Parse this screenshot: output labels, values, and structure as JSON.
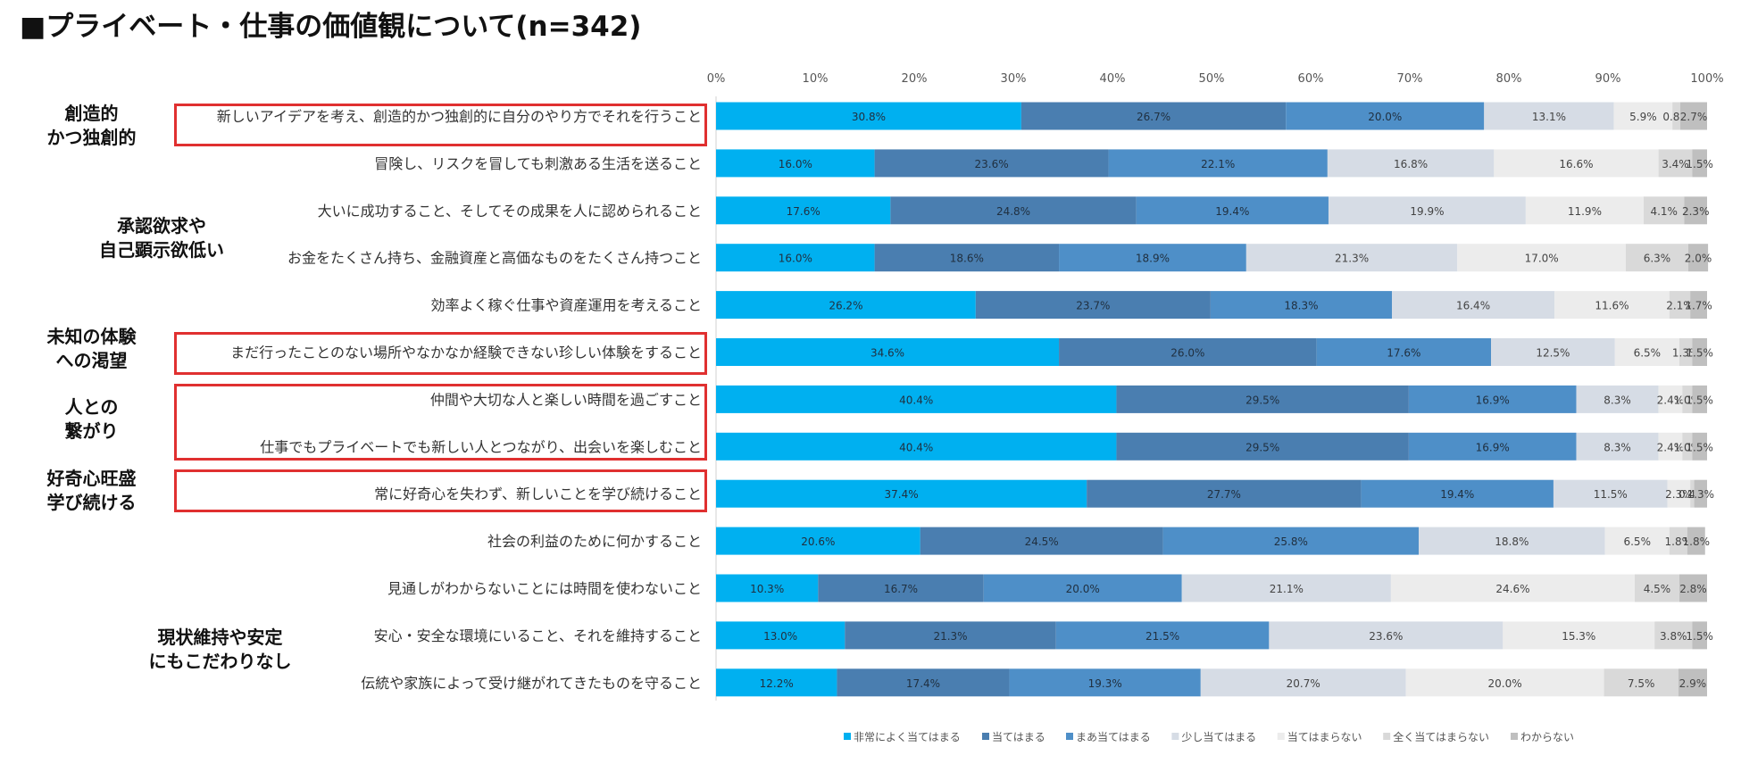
{
  "title": "■プライベート・仕事の価値観について(n=342)",
  "groups": [
    {
      "label": "創造的\nかつ独創的",
      "style": "green"
    },
    {
      "label": "承認欲求や\n自己顕示欲低い",
      "style": "gray"
    },
    {
      "label": "未知の体験\nへの渇望",
      "style": "green"
    },
    {
      "label": "人との\n繋がり",
      "style": "green"
    },
    {
      "label": "好奇心旺盛\n学び続ける",
      "style": "green"
    },
    {
      "label": "現状維持や安定\nにもこだわりなし",
      "style": "gray"
    }
  ],
  "chart_data": {
    "type": "bar",
    "orientation": "horizontal",
    "stacked": true,
    "percent": true,
    "xlim": [
      0,
      100
    ],
    "x_ticks": [
      "0%",
      "10%",
      "20%",
      "30%",
      "40%",
      "50%",
      "60%",
      "70%",
      "80%",
      "90%",
      "100%"
    ],
    "legend_position": "bottom",
    "categories": [
      "新しいアイデアを考え、創造的かつ独創的に自分のやり方でそれを行うこと",
      "冒険し、リスクを冒しても刺激ある生活を送ること",
      "大いに成功すること、そしてその成果を人に認められること",
      "お金をたくさん持ち、金融資産と高価なものをたくさん持つこと",
      "効率よく稼ぐ仕事や資産運用を考えること",
      "まだ行ったことのない場所やなかなか経験できない珍しい体験をすること",
      "仲間や大切な人と楽しい時間を過ごすこと",
      "仕事でもプライベートでも新しい人とつながり、出会いを楽しむこと",
      "常に好奇心を失わず、新しいことを学び続けること",
      "社会の利益のために何かすること",
      "見通しがわからないことには時間を使わないこと",
      "安心・安全な環境にいること、それを維持すること",
      "伝統や家族によって受け継がれてきたものを守ること"
    ],
    "series": [
      {
        "name": "非常によく当てはまる",
        "color": "#00b0f0",
        "values": [
          30.8,
          16.0,
          17.6,
          16.0,
          26.2,
          34.6,
          40.4,
          40.4,
          37.4,
          20.6,
          10.3,
          13.0,
          12.2
        ]
      },
      {
        "name": "当てはまる",
        "color": "#4a7eb0",
        "values": [
          26.7,
          23.6,
          24.8,
          18.6,
          23.7,
          26.0,
          29.5,
          29.5,
          27.7,
          24.5,
          16.7,
          21.3,
          17.4
        ]
      },
      {
        "name": "まあ当てはまる",
        "color": "#4e8fc8",
        "values": [
          20.0,
          22.1,
          19.4,
          18.9,
          18.3,
          17.6,
          16.9,
          16.9,
          19.4,
          25.8,
          20.0,
          21.5,
          19.3
        ]
      },
      {
        "name": "少し当てはまる",
        "color": "#d6dce5",
        "values": [
          13.1,
          16.8,
          19.9,
          21.3,
          16.4,
          12.5,
          8.3,
          8.3,
          11.5,
          18.8,
          21.1,
          23.6,
          20.7
        ]
      },
      {
        "name": "当てはまらない",
        "color": "#ececec",
        "values": [
          5.9,
          16.6,
          11.9,
          17.0,
          11.6,
          6.5,
          2.4,
          2.4,
          2.3,
          6.5,
          24.6,
          15.3,
          20.0
        ]
      },
      {
        "name": "全く当てはまらない",
        "color": "#d9d9d9",
        "values": [
          0.8,
          3.4,
          4.1,
          6.3,
          2.1,
          1.3,
          1.0,
          1.0,
          0.4,
          1.8,
          4.5,
          3.8,
          7.5
        ]
      },
      {
        "name": "わからない",
        "color": "#bfbfbf",
        "values": [
          2.7,
          1.5,
          2.3,
          2.0,
          1.7,
          1.5,
          1.5,
          1.5,
          1.3,
          1.8,
          2.8,
          1.5,
          2.9
        ]
      }
    ]
  }
}
